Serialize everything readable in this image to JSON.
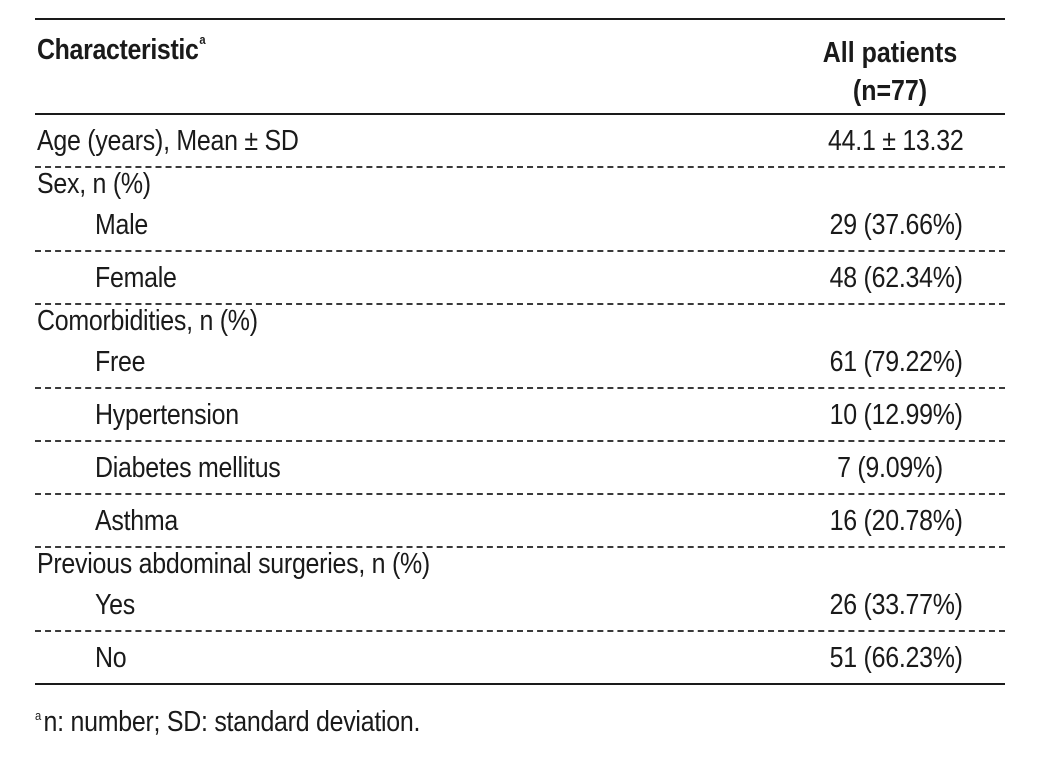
{
  "table": {
    "header": {
      "characteristic": "Characteristic",
      "characteristic_mark": "a",
      "all_patients_line1": "All patients",
      "all_patients_line2": "(n=77)"
    },
    "rows": [
      {
        "label": "Age (years), Mean ± SD",
        "value": "44.1 ± 13.32"
      },
      {
        "label": "Sex, n (%)",
        "value": ""
      },
      {
        "label": "Male",
        "value": "29 (37.66%)"
      },
      {
        "label": "Female",
        "value": "48 (62.34%)"
      },
      {
        "label": "Comorbidities, n (%)",
        "value": ""
      },
      {
        "label": "Free",
        "value": "61 (79.22%)"
      },
      {
        "label": "Hypertension",
        "value": "10 (12.99%)"
      },
      {
        "label": "Diabetes mellitus",
        "value": "7 (9.09%)"
      },
      {
        "label": "Asthma",
        "value": "16 (20.78%)"
      },
      {
        "label": "Previous abdominal surgeries, n (%)",
        "value": ""
      },
      {
        "label": "Yes",
        "value": "26 (33.77%)"
      },
      {
        "label": "No",
        "value": "51 (66.23%)"
      }
    ]
  },
  "footnote": {
    "mark": "a",
    "text": "n: number; SD: standard deviation."
  }
}
